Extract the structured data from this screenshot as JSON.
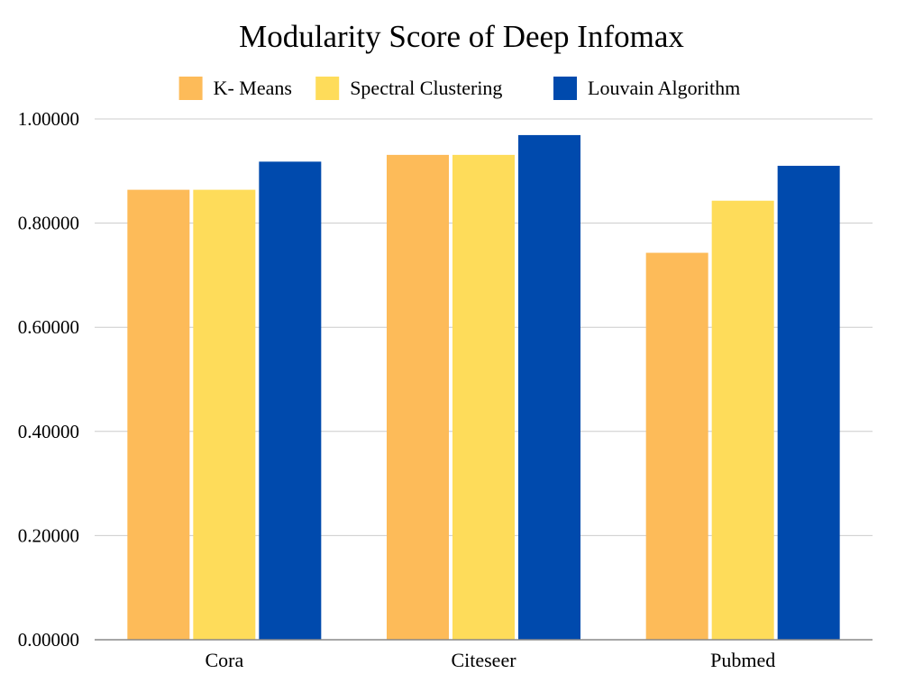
{
  "chart_data": {
    "type": "bar",
    "title": "Modularity Score of Deep Infomax",
    "xlabel": "",
    "ylabel": "",
    "categories": [
      "Cora",
      "Citeseer",
      "Pubmed"
    ],
    "series": [
      {
        "name": "K- Means",
        "color": "#FDBB59",
        "values": [
          0.864,
          0.931,
          0.743
        ]
      },
      {
        "name": "Spectral Clustering",
        "color": "#FEDC5A",
        "values": [
          0.864,
          0.931,
          0.843
        ]
      },
      {
        "name": "Louvain Algorithm",
        "color": "#004AAD",
        "values": [
          0.918,
          0.969,
          0.91
        ]
      }
    ],
    "ylim": [
      0,
      1
    ],
    "yticks": [
      "0.00000",
      "0.20000",
      "0.40000",
      "0.60000",
      "0.80000",
      "1.00000"
    ],
    "grid": true,
    "legend_position": "top"
  }
}
